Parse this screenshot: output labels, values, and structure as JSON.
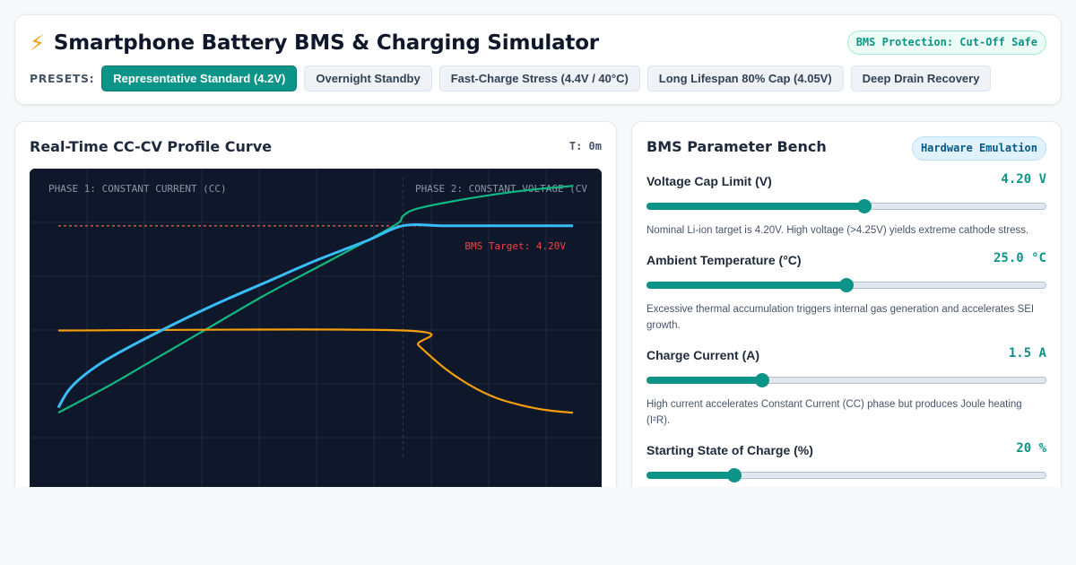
{
  "header": {
    "icon": "lightning-bolt-icon",
    "icon_glyph": "⚡",
    "title": "Smartphone Battery BMS & Charging Simulator",
    "protection_badge": "BMS Protection: Cut-Off Safe",
    "presets_label": "PRESETS:",
    "presets": [
      {
        "label": "Representative Standard (4.2V)",
        "active": true
      },
      {
        "label": "Overnight Standby",
        "active": false
      },
      {
        "label": "Fast-Charge Stress (4.4V / 40°C)",
        "active": false
      },
      {
        "label": "Long Lifespan 80% Cap (4.05V)",
        "active": false
      },
      {
        "label": "Deep Drain Recovery",
        "active": false
      }
    ]
  },
  "chart_panel": {
    "title": "Real-Time CC-CV Profile Curve",
    "timer": "T: 0m"
  },
  "chart_data": {
    "type": "line",
    "phase_labels": [
      "PHASE 1: CONSTANT CURRENT (CC)",
      "PHASE 2: CONSTANT VOLTAGE (CV"
    ],
    "target_label": "BMS Target: 4.20V",
    "x_range": [
      0,
      1
    ],
    "phase_boundary": 0.67,
    "y_range": [
      0,
      1
    ],
    "grid": true,
    "colors": {
      "background": "#0f172a",
      "grid": "#1f2a3d",
      "voltage": "#38bdf8",
      "soc": "#10b981",
      "current": "#f59e0b",
      "target": "#ef4444",
      "phase_text": "#8b96a8"
    },
    "series": [
      {
        "key": "voltage",
        "values": [
          [
            0,
            0.12
          ],
          [
            0.02,
            0.19
          ],
          [
            0.05,
            0.25
          ],
          [
            0.1,
            0.32
          ],
          [
            0.2,
            0.43
          ],
          [
            0.3,
            0.53
          ],
          [
            0.4,
            0.62
          ],
          [
            0.5,
            0.71
          ],
          [
            0.6,
            0.79
          ],
          [
            0.67,
            0.85
          ],
          [
            0.75,
            0.85
          ],
          [
            0.85,
            0.85
          ],
          [
            1,
            0.85
          ]
        ]
      },
      {
        "key": "soc",
        "values": [
          [
            0,
            0.1
          ],
          [
            0.1,
            0.21
          ],
          [
            0.2,
            0.33
          ],
          [
            0.3,
            0.45
          ],
          [
            0.4,
            0.57
          ],
          [
            0.5,
            0.68
          ],
          [
            0.6,
            0.79
          ],
          [
            0.66,
            0.86
          ],
          [
            0.67,
            0.89
          ],
          [
            0.7,
            0.92
          ],
          [
            0.8,
            0.96
          ],
          [
            0.9,
            0.99
          ],
          [
            1,
            1.01
          ]
        ]
      },
      {
        "key": "current",
        "values": [
          [
            0,
            0.43
          ],
          [
            0.67,
            0.43
          ],
          [
            0.7,
            0.37
          ],
          [
            0.75,
            0.28
          ],
          [
            0.8,
            0.21
          ],
          [
            0.85,
            0.16
          ],
          [
            0.9,
            0.13
          ],
          [
            0.95,
            0.11
          ],
          [
            1,
            0.1
          ]
        ]
      }
    ],
    "target_level": 0.85
  },
  "bench": {
    "title": "BMS Parameter Bench",
    "badge": "Hardware Emulation",
    "params": [
      {
        "label": "Voltage Cap Limit (V)",
        "value": "4.20 V",
        "level": 0.545,
        "note": "Nominal Li-ion target is 4.20V. High voltage (>4.25V) yields extreme cathode stress."
      },
      {
        "label": "Ambient Temperature (°C)",
        "value": "25.0 °C",
        "level": 0.5,
        "note": "Excessive thermal accumulation triggers internal gas generation and accelerates SEI growth."
      },
      {
        "label": "Charge Current (A)",
        "value": "1.5 A",
        "level": 0.29,
        "note": "High current accelerates Constant Current (CC) phase but produces Joule heating (I²R)."
      },
      {
        "label": "Starting State of Charge (%)",
        "value": "20 %",
        "level": 0.22,
        "note": ""
      }
    ]
  }
}
